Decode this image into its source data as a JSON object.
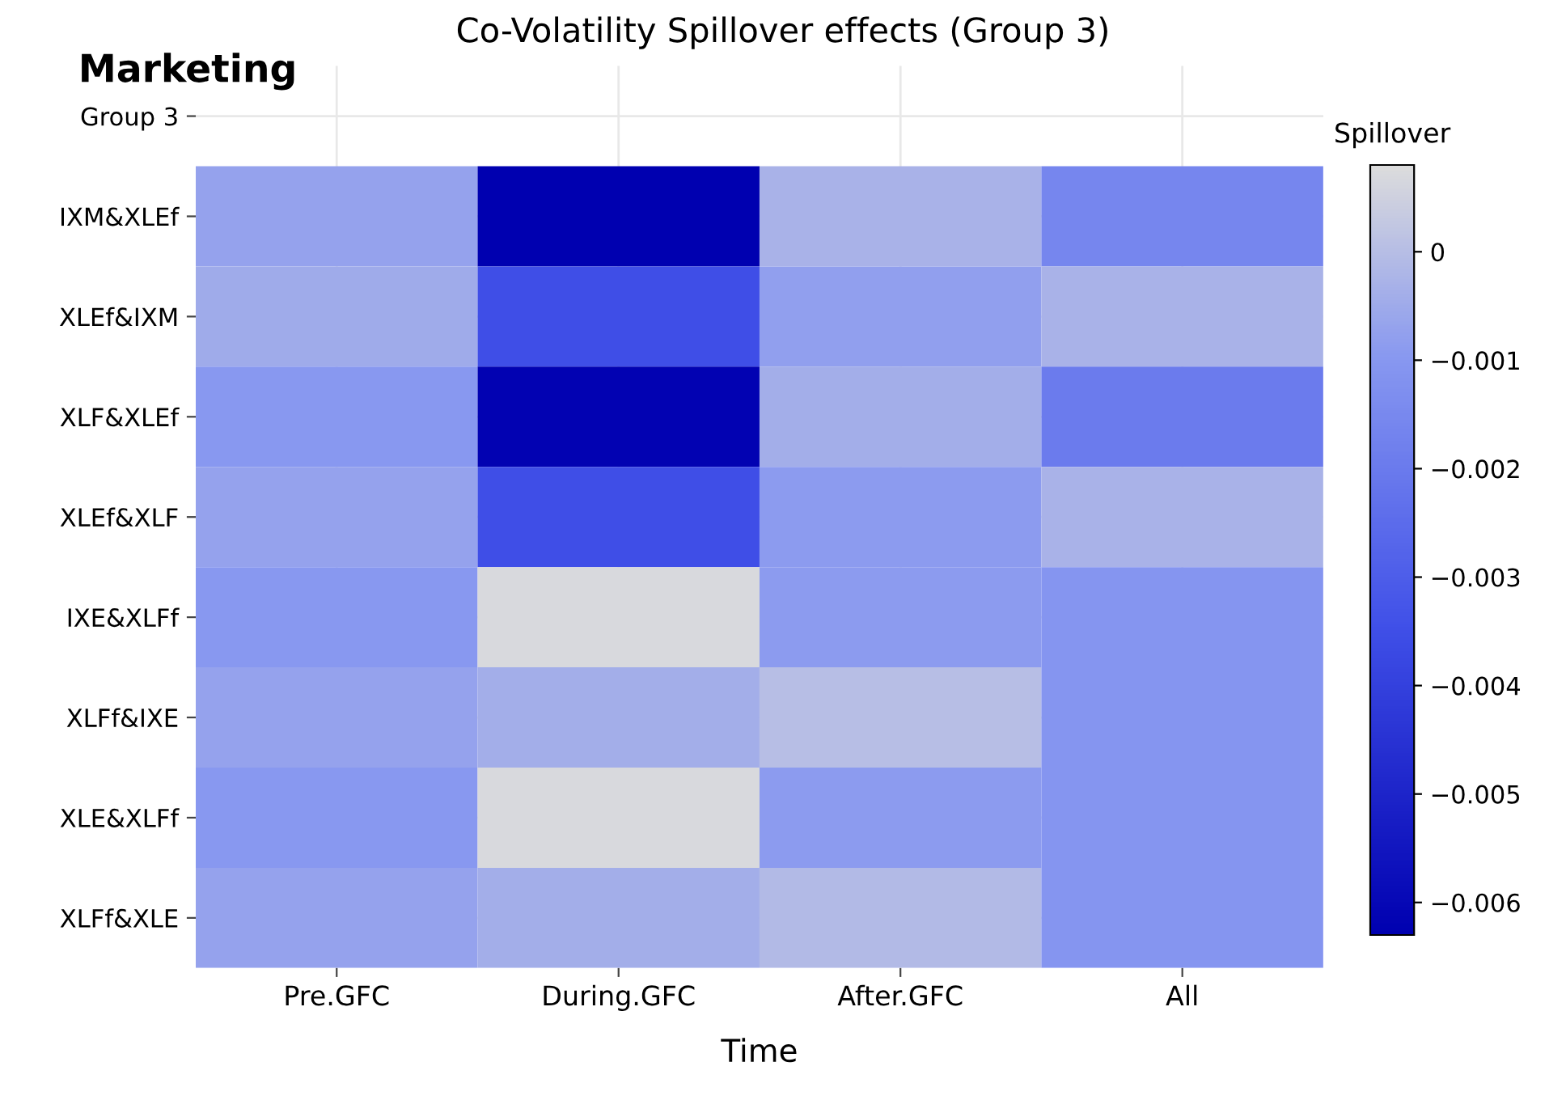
{
  "chart_data": {
    "type": "heatmap",
    "title": "Co-Volatility Spillover effects (Group 3)",
    "xlabel": "Time",
    "clabel": "Spillover",
    "annotations": [
      "Marketing"
    ],
    "categories": [
      "Pre.GFC",
      "During.GFC",
      "After.GFC",
      "All"
    ],
    "y_categories": [
      "Group 3",
      "IXM&XLEf",
      "XLEf&IXM",
      "XLF&XLEf",
      "XLEf&XLF",
      "IXE&XLFf",
      "XLFf&IXE",
      "XLE&XLFf",
      "XLFf&XLE"
    ],
    "cells": [
      [
        null,
        null,
        null,
        null
      ],
      [
        -0.0007,
        -0.0063,
        -0.0003,
        -0.0016
      ],
      [
        -0.0005,
        -0.0035,
        -0.0008,
        -0.0003
      ],
      [
        -0.001,
        -0.0062,
        -0.0004,
        -0.002
      ],
      [
        -0.0007,
        -0.0035,
        -0.0009,
        -0.0003
      ],
      [
        -0.001,
        0.0007,
        -0.0009,
        -0.0011
      ],
      [
        -0.0007,
        -0.0004,
        0.0,
        -0.0011
      ],
      [
        -0.001,
        0.0007,
        -0.0009,
        -0.0011
      ],
      [
        -0.0007,
        -0.0004,
        -0.0001,
        -0.0011
      ]
    ],
    "clim": [
      -0.0063,
      0.0008
    ],
    "cticks": [
      {
        "value": 0,
        "label": "0"
      },
      {
        "value": -0.001,
        "label": "−0.001"
      },
      {
        "value": -0.002,
        "label": "−0.002"
      },
      {
        "value": -0.003,
        "label": "−0.003"
      },
      {
        "value": -0.004,
        "label": "−0.004"
      },
      {
        "value": -0.005,
        "label": "−0.005"
      },
      {
        "value": -0.006,
        "label": "−0.006"
      }
    ],
    "grid": true
  }
}
